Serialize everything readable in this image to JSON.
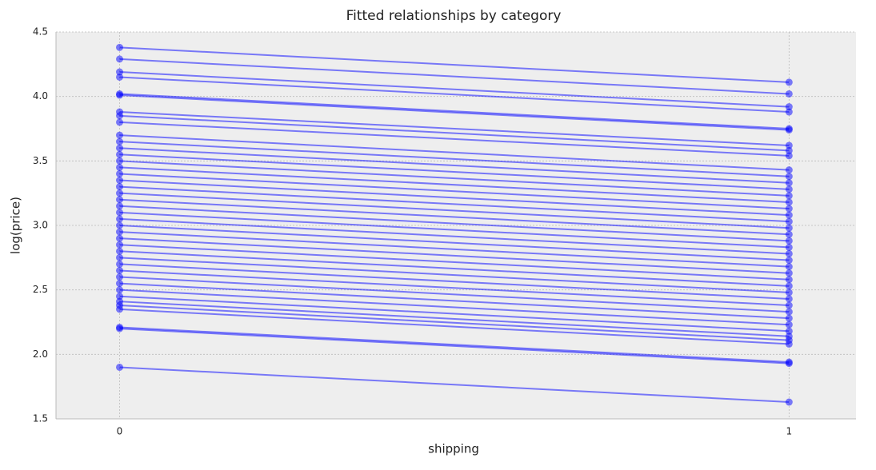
{
  "chart_data": {
    "type": "line",
    "title": "Fitted relationships by category",
    "xlabel": "shipping",
    "ylabel": "log(price)",
    "x": [
      0,
      1
    ],
    "xlim": [
      -0.095,
      1.1
    ],
    "ylim": [
      1.5,
      4.5
    ],
    "xticks": [
      0,
      1
    ],
    "yticks": [
      1.5,
      {
        "value": 2,
        "label": "2.0"
      },
      2.5,
      {
        "value": 3,
        "label": "3.0"
      },
      3.5,
      {
        "value": 4,
        "label": "4.0"
      },
      4.5
    ],
    "grid": true,
    "color": "#0000ff",
    "alpha": 0.5,
    "series": [
      {
        "values": [
          4.38,
          4.11
        ]
      },
      {
        "values": [
          4.29,
          4.02
        ]
      },
      {
        "values": [
          4.19,
          3.92
        ]
      },
      {
        "values": [
          4.15,
          3.88
        ]
      },
      {
        "values": [
          4.02,
          3.75
        ]
      },
      {
        "values": [
          4.01,
          3.74
        ]
      },
      {
        "values": [
          3.88,
          3.62
        ]
      },
      {
        "values": [
          3.85,
          3.58
        ]
      },
      {
        "values": [
          3.8,
          3.54
        ]
      },
      {
        "values": [
          3.7,
          3.43
        ]
      },
      {
        "values": [
          3.65,
          3.38
        ]
      },
      {
        "values": [
          3.6,
          3.33
        ]
      },
      {
        "values": [
          3.55,
          3.28
        ]
      },
      {
        "values": [
          3.5,
          3.23
        ]
      },
      {
        "values": [
          3.45,
          3.18
        ]
      },
      {
        "values": [
          3.4,
          3.13
        ]
      },
      {
        "values": [
          3.35,
          3.08
        ]
      },
      {
        "values": [
          3.3,
          3.03
        ]
      },
      {
        "values": [
          3.25,
          2.98
        ]
      },
      {
        "values": [
          3.2,
          2.93
        ]
      },
      {
        "values": [
          3.15,
          2.88
        ]
      },
      {
        "values": [
          3.1,
          2.83
        ]
      },
      {
        "values": [
          3.05,
          2.78
        ]
      },
      {
        "values": [
          3.0,
          2.73
        ]
      },
      {
        "values": [
          2.95,
          2.68
        ]
      },
      {
        "values": [
          2.9,
          2.63
        ]
      },
      {
        "values": [
          2.85,
          2.58
        ]
      },
      {
        "values": [
          2.8,
          2.53
        ]
      },
      {
        "values": [
          2.75,
          2.48
        ]
      },
      {
        "values": [
          2.7,
          2.43
        ]
      },
      {
        "values": [
          2.65,
          2.38
        ]
      },
      {
        "values": [
          2.6,
          2.33
        ]
      },
      {
        "values": [
          2.55,
          2.28
        ]
      },
      {
        "values": [
          2.5,
          2.23
        ]
      },
      {
        "values": [
          2.45,
          2.18
        ]
      },
      {
        "values": [
          2.41,
          2.14
        ]
      },
      {
        "values": [
          2.38,
          2.11
        ]
      },
      {
        "values": [
          2.35,
          2.08
        ]
      },
      {
        "values": [
          2.21,
          1.94
        ]
      },
      {
        "values": [
          2.2,
          1.93
        ]
      },
      {
        "values": [
          1.9,
          1.63
        ]
      }
    ]
  }
}
